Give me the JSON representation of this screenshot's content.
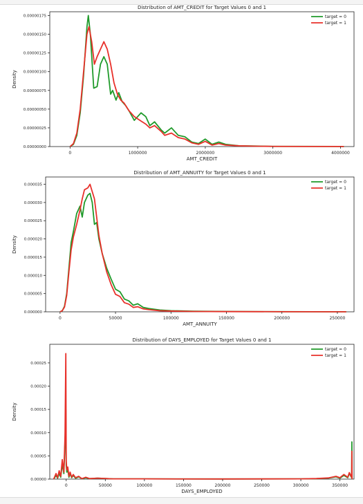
{
  "colors": {
    "target_0": "#1f9a2a",
    "target_1": "#e8302a",
    "axis": "#222222"
  },
  "chart_data": [
    {
      "type": "line",
      "title": "Distribution of AMT_CREDIT for Target Values 0 and 1",
      "xlabel": "AMT_CREDIT",
      "ylabel": "Density",
      "xlim": [
        -300000,
        4200000
      ],
      "ylim": [
        0,
        1.8e-06
      ],
      "xticks": [
        0,
        1000000,
        2000000,
        3000000,
        4000000
      ],
      "xtick_labels": [
        "0",
        "1000000",
        "2000000",
        "3000000",
        "4000000"
      ],
      "yticks": [
        0,
        2.5e-07,
        5e-07,
        7.5e-07,
        1e-06,
        1.25e-06,
        1.5e-06,
        1.75e-06
      ],
      "ytick_labels": [
        "0.00000000",
        "0.00000025",
        "0.00000050",
        "0.00000075",
        "0.00000100",
        "0.00000125",
        "0.00000150",
        "0.00000175"
      ],
      "legend": "top-right",
      "series": [
        {
          "name": "target = 0",
          "x": [
            0,
            50000,
            100000,
            150000,
            200000,
            250000,
            270000,
            300000,
            350000,
            400000,
            450000,
            500000,
            550000,
            600000,
            630000,
            680000,
            720000,
            770000,
            820000,
            870000,
            950000,
            1050000,
            1120000,
            1180000,
            1250000,
            1350000,
            1400000,
            1500000,
            1600000,
            1700000,
            1800000,
            1900000,
            2000000,
            2100000,
            2200000,
            2300000,
            2500000,
            2700000,
            3000000,
            3500000,
            4000000,
            4050000
          ],
          "y": [
            0,
            3e-08,
            1.5e-07,
            4.5e-07,
            9.5e-07,
            1.6e-06,
            1.75e-06,
            1.5e-06,
            7.8e-07,
            8e-07,
            1.1e-06,
            1.2e-06,
            1.1e-06,
            7e-07,
            7.5e-07,
            6.2e-07,
            7.2e-07,
            6e-07,
            5.5e-07,
            4.8e-07,
            3.5e-07,
            4.5e-07,
            4e-07,
            2.8e-07,
            3.3e-07,
            2.2e-07,
            1.8e-07,
            2.5e-07,
            1.5e-07,
            1.3e-07,
            6e-08,
            4e-08,
            1e-07,
            3e-08,
            6e-08,
            3e-08,
            1e-08,
            8e-09,
            2e-09,
            2e-09,
            1e-09,
            0
          ]
        },
        {
          "name": "target = 1",
          "x": [
            0,
            50000,
            100000,
            150000,
            200000,
            250000,
            280000,
            320000,
            360000,
            400000,
            450000,
            500000,
            550000,
            600000,
            650000,
            700000,
            750000,
            800000,
            870000,
            950000,
            1050000,
            1120000,
            1180000,
            1250000,
            1350000,
            1400000,
            1500000,
            1600000,
            1700000,
            1800000,
            1900000,
            2000000,
            2100000,
            2200000,
            2300000,
            2500000,
            2700000,
            3000000,
            3500000,
            4000000,
            4050000
          ],
          "y": [
            0,
            4e-08,
            1.8e-07,
            5e-07,
            1e-06,
            1.5e-06,
            1.6e-06,
            1.4e-06,
            1.1e-06,
            1.2e-06,
            1.3e-06,
            1.4e-06,
            1.3e-06,
            1.1e-06,
            8.5e-07,
            7e-07,
            6.2e-07,
            5.8e-07,
            4.8e-07,
            4e-07,
            3.4e-07,
            3e-07,
            2.5e-07,
            2.8e-07,
            2e-07,
            1.5e-07,
            1.8e-07,
            1.2e-07,
            1e-07,
            5e-08,
            3e-08,
            7e-08,
            2e-08,
            4e-08,
            2e-08,
            1e-08,
            6e-09,
            2e-09,
            1e-09,
            1e-09,
            0
          ]
        }
      ]
    },
    {
      "type": "line",
      "title": "Distribution of AMT_ANNUITY for Target Values 0 and 1",
      "xlabel": "AMT_ANNUITY",
      "ylabel": "Density",
      "xlim": [
        -13000,
        265000
      ],
      "ylim": [
        0,
        3.7e-05
      ],
      "xticks": [
        0,
        50000,
        100000,
        150000,
        200000,
        250000
      ],
      "xtick_labels": [
        "0",
        "50000",
        "100000",
        "150000",
        "200000",
        "250000"
      ],
      "yticks": [
        0,
        5e-06,
        1e-05,
        1.5e-05,
        2e-05,
        2.5e-05,
        3e-05,
        3.5e-05
      ],
      "ytick_labels": [
        "0.000000",
        "0.000005",
        "0.000010",
        "0.000015",
        "0.000020",
        "0.000025",
        "0.000030",
        "0.000035"
      ],
      "legend": "top-right",
      "series": [
        {
          "name": "target = 0",
          "x": [
            0,
            2000,
            4000,
            6000,
            8000,
            10000,
            12000,
            15000,
            18000,
            20000,
            22000,
            25000,
            27000,
            29000,
            31000,
            33000,
            35000,
            38000,
            42000,
            46000,
            50000,
            54000,
            58000,
            62000,
            66000,
            70000,
            75000,
            80000,
            90000,
            100000,
            120000,
            150000,
            200000,
            258000
          ],
          "y": [
            0,
            3e-07,
            1.5e-06,
            5e-06,
            1.2e-05,
            1.9e-05,
            2.2e-05,
            2.7e-05,
            2.9e-05,
            2.6e-05,
            3e-05,
            3.2e-05,
            3.25e-05,
            3e-05,
            2.4e-05,
            2.45e-05,
            2e-05,
            1.6e-05,
            1.2e-05,
            9e-06,
            6.2e-06,
            5.5e-06,
            3.5e-06,
            3e-06,
            1.8e-06,
            2.2e-06,
            1.2e-06,
            9e-07,
            5e-07,
            3e-07,
            1.5e-07,
            8e-08,
            4e-08,
            0
          ]
        },
        {
          "name": "target = 1",
          "x": [
            0,
            2000,
            4000,
            6000,
            8000,
            10000,
            12000,
            15000,
            18000,
            20000,
            22000,
            25000,
            27000,
            29000,
            31000,
            33000,
            35000,
            38000,
            42000,
            46000,
            50000,
            54000,
            58000,
            62000,
            66000,
            70000,
            75000,
            80000,
            90000,
            100000,
            120000,
            150000,
            200000,
            258000
          ],
          "y": [
            0,
            3e-07,
            1.3e-06,
            4.5e-06,
            1.1e-05,
            1.7e-05,
            2.05e-05,
            2.4e-05,
            2.8e-05,
            3.1e-05,
            3.35e-05,
            3.4e-05,
            3.5e-05,
            3.3e-05,
            3.1e-05,
            2.6e-05,
            2.1e-05,
            1.6e-05,
            1.1e-05,
            7.5e-06,
            4.8e-06,
            4.2e-06,
            2.5e-06,
            2.1e-06,
            1.2e-06,
            1.4e-06,
            8e-07,
            6e-07,
            3e-07,
            2e-07,
            1e-07,
            6e-08,
            3e-08,
            0
          ]
        }
      ]
    },
    {
      "type": "line",
      "title": "Distribution of DAYS_EMPLOYED for Target Values 0 and 1",
      "xlabel": "DAYS_EMPLOYED",
      "ylabel": "Density",
      "xlim": [
        -21000,
        368000
      ],
      "ylim": [
        0,
        0.00029
      ],
      "xticks": [
        0,
        50000,
        100000,
        150000,
        200000,
        250000,
        300000,
        350000
      ],
      "xtick_labels": [
        "0",
        "50000",
        "100000",
        "150000",
        "200000",
        "250000",
        "300000",
        "350000"
      ],
      "yticks": [
        0,
        5e-05,
        0.0001,
        0.00015,
        0.0002,
        0.00025
      ],
      "ytick_labels": [
        "0.00000",
        "0.00005",
        "0.00010",
        "0.00015",
        "0.00020",
        "0.00025"
      ],
      "legend": "top-right",
      "series": [
        {
          "name": "target = 0",
          "x": [
            -16000,
            -13000,
            -11000,
            -9000,
            -7000,
            -5000,
            -3000,
            -1500,
            -500,
            0,
            800,
            2000,
            3500,
            5000,
            7000,
            9000,
            12000,
            16000,
            20000,
            25000,
            30000,
            40000,
            60000,
            100000,
            200000,
            300000,
            320000,
            335000,
            345000,
            350000,
            355000,
            360000,
            362000,
            365000,
            365243,
            365500
          ],
          "y": [
            0,
            8e-06,
            2e-06,
            1.2e-05,
            4e-06,
            3.2e-05,
            1.2e-05,
            8e-05,
            0.00015,
            3e-05,
            1.5e-05,
            2e-05,
            4e-06,
            1.2e-05,
            3e-06,
            8e-06,
            2e-06,
            5e-06,
            1e-06,
            3e-06,
            1e-06,
            2e-06,
            5e-07,
            5e-07,
            3e-07,
            5e-07,
            1e-06,
            2e-06,
            5e-06,
            2e-06,
            8e-06,
            3e-06,
            1.2e-05,
            3e-06,
            8e-05,
            0
          ]
        },
        {
          "name": "target = 1",
          "x": [
            -16000,
            -13000,
            -11000,
            -9000,
            -7000,
            -5000,
            -3000,
            -1500,
            -500,
            0,
            800,
            2000,
            3500,
            5000,
            7000,
            9000,
            12000,
            16000,
            20000,
            25000,
            30000,
            40000,
            60000,
            100000,
            200000,
            300000,
            320000,
            335000,
            345000,
            350000,
            355000,
            360000,
            362000,
            365000,
            365243,
            365500
          ],
          "y": [
            0,
            1.2e-05,
            3e-06,
            1.8e-05,
            6e-06,
            4.2e-05,
            1.5e-05,
            9.5e-05,
            0.00027,
            4e-05,
            2e-05,
            2.6e-05,
            6e-06,
            1.5e-05,
            4e-06,
            1e-05,
            3e-06,
            6e-06,
            1e-06,
            4e-06,
            1e-06,
            2e-06,
            5e-07,
            5e-07,
            3e-07,
            6e-07,
            1.2e-06,
            2.5e-06,
            6e-06,
            3e-06,
            1e-05,
            4e-06,
            1.4e-05,
            4e-06,
            6e-05,
            0
          ]
        }
      ]
    }
  ]
}
